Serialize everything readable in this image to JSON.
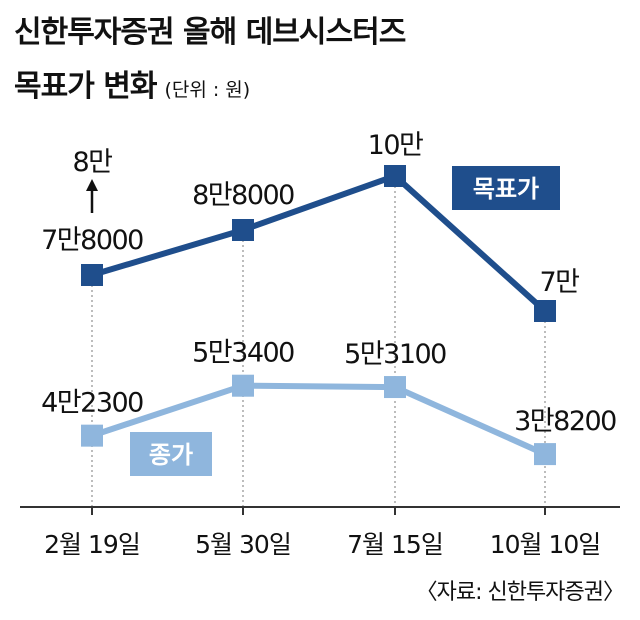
{
  "header": {
    "title_line1": "신한투자증권 올해 데브시스터즈",
    "title_line2": "목표가 변화",
    "unit": "(단위 : 원)"
  },
  "source": "〈자료: 신한투자증권〉",
  "colors": {
    "target": "#1f4e8c",
    "price": "#8fb6dd",
    "axis": "#333333",
    "guide": "#999999"
  },
  "chart_data": {
    "type": "line",
    "categories": [
      "2월 19일",
      "5월 30일",
      "7월 15일",
      "10월 10일"
    ],
    "series": [
      {
        "name": "목표가",
        "values": [
          78000,
          88000,
          100000,
          70000
        ],
        "labels": [
          "7만8000",
          "8만8000",
          "10만",
          "7만"
        ]
      },
      {
        "name": "종가",
        "values": [
          42300,
          53400,
          53100,
          38200
        ],
        "labels": [
          "4만2300",
          "5만3400",
          "5만3100",
          "3만8200"
        ]
      }
    ],
    "annotations": [
      {
        "category": "2월 19일",
        "series": "목표가",
        "from": "7만8000",
        "to": "8만",
        "marker": "arrow-up"
      }
    ],
    "ylim": [
      28000,
      108000
    ],
    "grid": false,
    "legend": "inline"
  }
}
